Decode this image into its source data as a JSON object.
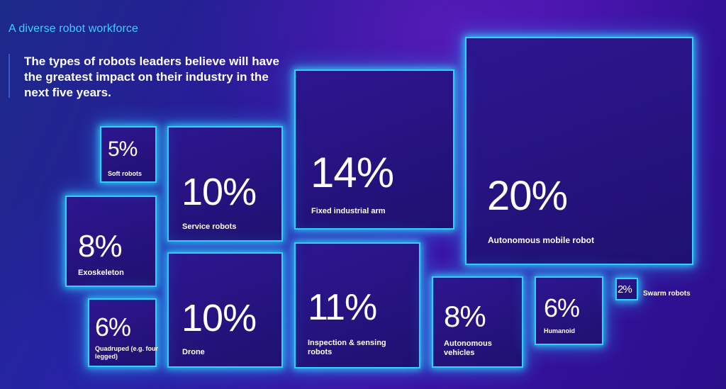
{
  "header": {
    "subtitle": "A diverse robot workforce",
    "headline": "The types of robots leaders believe will have the greatest impact on their industry in the next five years."
  },
  "colors": {
    "accent": "#2fd2ff",
    "tile_fill": "#26137f",
    "background": "#2a1a9a"
  },
  "chart_data": {
    "type": "treemap",
    "unit": "%",
    "categories": [
      "Autonomous mobile robot",
      "Fixed industrial arm",
      "Inspection & sensing robots",
      "Service robots",
      "Drone",
      "Exoskeleton",
      "Autonomous vehicles",
      "Quadruped (e.g. four legged)",
      "Humanoid",
      "Soft robots",
      "Swarm robots"
    ],
    "values": [
      20,
      14,
      11,
      10,
      10,
      8,
      8,
      6,
      6,
      5,
      2
    ],
    "items": [
      {
        "id": "amr",
        "label": "Autonomous mobile robot",
        "value": 20,
        "value_text": "20%"
      },
      {
        "id": "arm",
        "label": "Fixed industrial arm",
        "value": 14,
        "value_text": "14%"
      },
      {
        "id": "inspection",
        "label": "Inspection & sensing robots",
        "value": 11,
        "value_text": "11%"
      },
      {
        "id": "service",
        "label": "Service robots",
        "value": 10,
        "value_text": "10%"
      },
      {
        "id": "drone",
        "label": "Drone",
        "value": 10,
        "value_text": "10%"
      },
      {
        "id": "exo",
        "label": "Exoskeleton",
        "value": 8,
        "value_text": "8%"
      },
      {
        "id": "av",
        "label": "Autonomous vehicles",
        "value": 8,
        "value_text": "8%"
      },
      {
        "id": "quadruped",
        "label": "Quadruped (e.g. four legged)",
        "value": 6,
        "value_text": "6%"
      },
      {
        "id": "humanoid",
        "label": "Humanoid",
        "value": 6,
        "value_text": "6%"
      },
      {
        "id": "soft",
        "label": "Soft robots",
        "value": 5,
        "value_text": "5%"
      },
      {
        "id": "swarm",
        "label": "Swarm robots",
        "value": 2,
        "value_text": "2%"
      }
    ]
  }
}
